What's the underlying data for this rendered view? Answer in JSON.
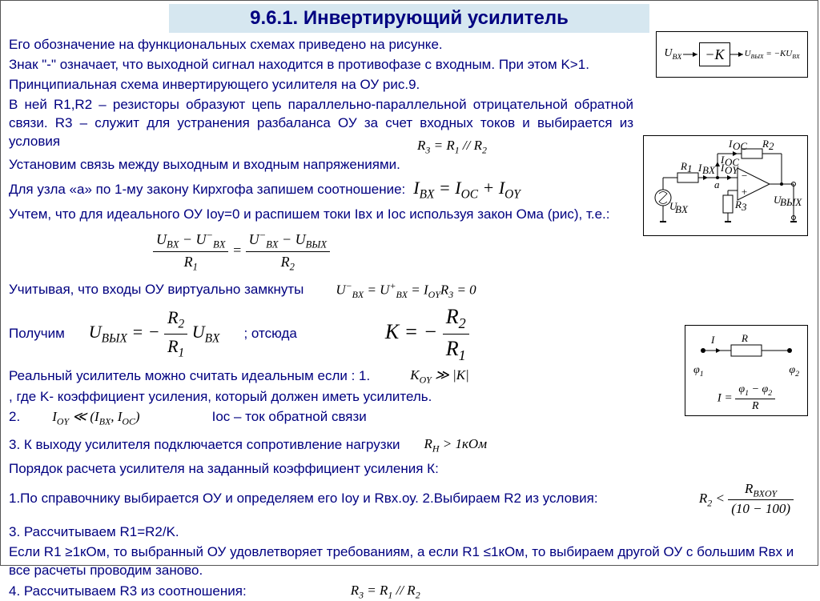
{
  "title": "9.6.1. Инвертирующий усилитель",
  "p1": "Его обозначение на функциональных схемах приведено на рисунке.",
  "p2": "Знак \"-\" означает, что выходной сигнал находится в противофазе с входным. При этом K>1.",
  "p3": "Принципиальная схема инвертирующего усилителя на ОУ рис.9.",
  "p4": " В ней R1,R2 – резисторы образуют цепь параллельно-параллельной отрицательной обратной связи. R3 – служит для устранения разбаланса ОУ за счет входных токов и выбирается из условия",
  "p5": "Установим связь между выходным и входным напряжениями.",
  "p6": " Для узла «а» по 1-му закону Кирхгофа запишем соотношение:",
  "p7": "Учтем, что для идеального ОУ Iоу=0 и распишем токи Iвх и Iос используя закон Ома (рис), т.е.:",
  "p8a": "Учитывая, что входы ОУ виртуально замкнуты",
  "p8b": "Получим",
  "p8c": "; отсюда",
  "p9a": "Реальный усилитель можно считать идеальным если : 1.",
  "p9b": " , где K- коэффициент усиления, который должен иметь усилитель.",
  "p9c": "2.",
  "p9d": "Ioc – ток обратной связи",
  "p10": "3. К выходу усилителя подключается сопротивление нагрузки",
  "p11": "Порядок расчета усилителя на заданный коэффициент усиления К:",
  "p12": "1.По справочнику выбирается ОУ и определяем его Iоу и Rвх.оу.   2.Выбираем R2 из условия:",
  "p13": "3. Рассчитываем R1=R2/K.",
  "p14": "Если R1 ≥1кОм, то выбранный ОУ удовлетворяет требованиям, а если R1 ≤1кОм, то выбираем другой ОУ с большим Rвх и все расчеты проводим заново.",
  "p15": "4. Рассчитываем R3 из соотношения:",
  "eq1_html": "R<sub>3</sub> = R<sub>1</sub> // R<sub>2</sub>",
  "eq_kirchhoff_html": "I<sub>BX</sub> = I<sub>OC</sub> + I<sub>OY</sub>",
  "eq_ohm_lhs_num_html": "U<sub>BX</sub> − U<sup>−</sup><sub>BX</sub>",
  "eq_ohm_lhs_den_html": "R<sub>1</sub>",
  "eq_ohm_rhs_num_html": "U<sup>−</sup><sub>BX</sub> − U<sub>BЫX</sub>",
  "eq_ohm_rhs_den_html": "R<sub>2</sub>",
  "eq_virtual_html": "U<sup>−</sup><sub>BX</sub> = U<sup>+</sup><sub>BX</sub> = I<sub>OY</sub>R<sub>3</sub> = 0",
  "eq_uout_lhs_html": "U<sub>BЫX</sub> = −",
  "eq_uout_num_html": "R<sub>2</sub>",
  "eq_uout_den_html": "R<sub>1</sub>",
  "eq_uout_rhs_html": "U<sub>BX</sub>",
  "eq_k_html": "K = −",
  "eq_k_num_html": "R<sub>2</sub>",
  "eq_k_den_html": "R<sub>1</sub>",
  "eq_koy_html": "K<sub>OY</sub> ≫ |K|",
  "eq_ioy_html": "I<sub>OY</sub> ≪ (I<sub>BX</sub>, I<sub>OC</sub>)",
  "eq_rn_html": "R<sub>H</sub> > 1кОм",
  "eq_r2_lhs_html": "R<sub>2</sub> <",
  "eq_r2_num_html": "R<sub>BXOY</sub>",
  "eq_r2_den": "(10 − 100)",
  "eq_r3_html": "R<sub>3</sub> = R<sub>1</sub> // R<sub>2</sub>",
  "fig1": {
    "in": "U<sub>BX</sub>",
    "block": "−K",
    "out": "U<sub>BЫX</sub> = −KU<sub>BX</sub>"
  },
  "fig3_i": "I",
  "fig3_r": "R",
  "fig3_phi1": "φ<sub>1</sub>",
  "fig3_phi2": "φ<sub>2</sub>",
  "fig3_eq_lhs": "I =",
  "fig3_eq_num": "φ<sub>1</sub> − φ<sub>2</sub>",
  "fig3_eq_den": "R"
}
